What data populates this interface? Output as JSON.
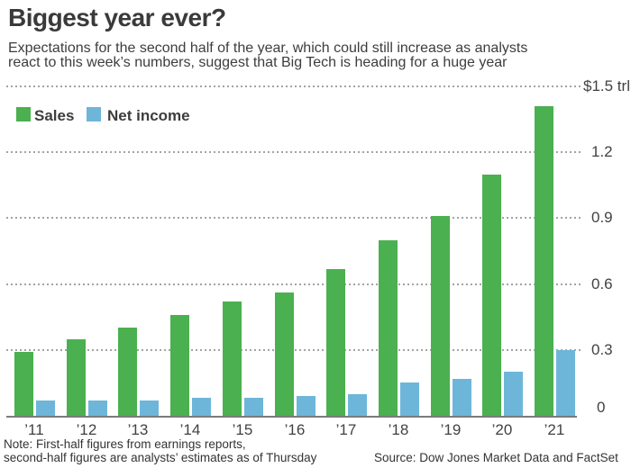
{
  "header": {
    "title": "Biggest year ever?",
    "subtitle_lines": [
      "Expectations for the second half of the year, which could still increase as analysts",
      "react to this week’s numbers, suggest that Big Tech is heading for a huge year"
    ]
  },
  "legend": {
    "items": [
      {
        "label": "Sales",
        "color": "#4bb04f"
      },
      {
        "label": "Net income",
        "color": "#6db6d9"
      }
    ]
  },
  "chart_data": {
    "type": "bar",
    "title": "Biggest year ever?",
    "unit": "$ trillion",
    "categories": [
      "’11",
      "’12",
      "’13",
      "’14",
      "’15",
      "’16",
      "’17",
      "’18",
      "’19",
      "’20",
      "’21"
    ],
    "series": [
      {
        "name": "Sales",
        "color": "#4bb04f",
        "values": [
          0.29,
          0.35,
          0.4,
          0.46,
          0.52,
          0.56,
          0.67,
          0.8,
          0.91,
          1.1,
          1.41
        ]
      },
      {
        "name": "Net income",
        "color": "#6db6d9",
        "values": [
          0.07,
          0.07,
          0.07,
          0.08,
          0.08,
          0.09,
          0.1,
          0.15,
          0.17,
          0.2,
          0.3
        ]
      }
    ],
    "ylim": [
      0,
      1.5
    ],
    "y_ticks": [
      {
        "label": "$1.5 trl",
        "value": 1.5
      },
      {
        "label": "1.2",
        "value": 1.2
      },
      {
        "label": "0.9",
        "value": 0.9
      },
      {
        "label": "0.6",
        "value": 0.6
      },
      {
        "label": "0.3",
        "value": 0.3
      },
      {
        "label": "0",
        "value": 0
      }
    ],
    "grid": "dotted-horizontal",
    "legend_position": "top-left"
  },
  "footer": {
    "note_lines": [
      "Note: First-half figures from earnings reports,",
      "second-half figures are analysts’ estimates as of Thursday"
    ],
    "source": "Source: Dow Jones Market Data and FactSet"
  },
  "colors": {
    "sales": "#4bb04f",
    "net_income": "#6db6d9",
    "text": "#3a3a3a",
    "grid": "#a3a3a3",
    "axis": "#7b7b7b"
  }
}
